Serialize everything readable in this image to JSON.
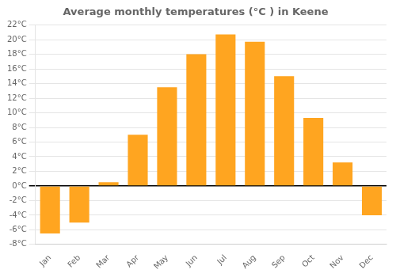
{
  "chart_data": {
    "type": "bar",
    "title": "Average monthly temperatures (°C ) in Keene",
    "categories": [
      "Jan",
      "Feb",
      "Mar",
      "Apr",
      "May",
      "Jun",
      "Jul",
      "Aug",
      "Sep",
      "Oct",
      "Nov",
      "Dec"
    ],
    "values": [
      -6.5,
      -5.0,
      0.5,
      7.0,
      13.5,
      18.0,
      20.7,
      19.7,
      15.0,
      9.3,
      3.2,
      -4.0
    ],
    "color": "#FFA520",
    "ylim": [
      -8,
      22
    ],
    "yticks": [
      {
        "value": -8,
        "label": "-8°C"
      },
      {
        "value": -6,
        "label": "-6°C"
      },
      {
        "value": -4,
        "label": "-4°C"
      },
      {
        "value": -2,
        "label": "-2°C"
      },
      {
        "value": 0,
        "label": "0°C"
      },
      {
        "value": 2,
        "label": "2°C"
      },
      {
        "value": 4,
        "label": "4°C"
      },
      {
        "value": 6,
        "label": "6°C"
      },
      {
        "value": 8,
        "label": "8°C"
      },
      {
        "value": 10,
        "label": "10°C"
      },
      {
        "value": 12,
        "label": "12°C"
      },
      {
        "value": 14,
        "label": "14°C"
      },
      {
        "value": 16,
        "label": "16°C"
      },
      {
        "value": 18,
        "label": "18°C"
      },
      {
        "value": 20,
        "label": "20°C"
      },
      {
        "value": 22,
        "label": "22°C"
      }
    ],
    "grid": true
  }
}
